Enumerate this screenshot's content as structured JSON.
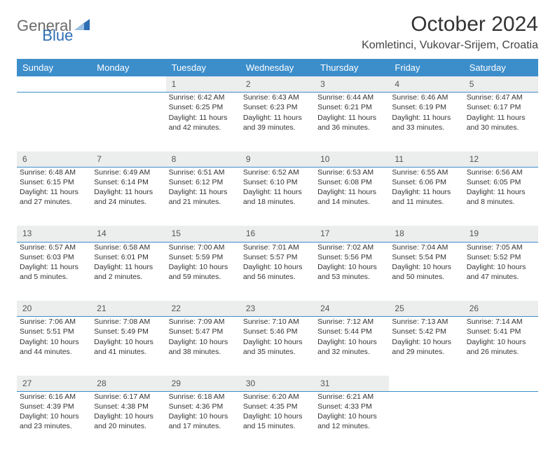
{
  "brand": {
    "part1": "General",
    "part2": "Blue"
  },
  "title": "October 2024",
  "location": "Komletinci, Vukovar-Srijem, Croatia",
  "header_bg": "#3c8ecb",
  "header_fg": "#ffffff",
  "daynum_bg": "#eceded",
  "daynum_border": "#3c8ecb",
  "body_bg": "#ffffff",
  "text_color": "#333333",
  "days": [
    "Sunday",
    "Monday",
    "Tuesday",
    "Wednesday",
    "Thursday",
    "Friday",
    "Saturday"
  ],
  "weeks": [
    {
      "nums": [
        "",
        "",
        "1",
        "2",
        "3",
        "4",
        "5"
      ],
      "cells": [
        {},
        {},
        {
          "sunrise": "Sunrise: 6:42 AM",
          "sunset": "Sunset: 6:25 PM",
          "daylight": "Daylight: 11 hours and 42 minutes."
        },
        {
          "sunrise": "Sunrise: 6:43 AM",
          "sunset": "Sunset: 6:23 PM",
          "daylight": "Daylight: 11 hours and 39 minutes."
        },
        {
          "sunrise": "Sunrise: 6:44 AM",
          "sunset": "Sunset: 6:21 PM",
          "daylight": "Daylight: 11 hours and 36 minutes."
        },
        {
          "sunrise": "Sunrise: 6:46 AM",
          "sunset": "Sunset: 6:19 PM",
          "daylight": "Daylight: 11 hours and 33 minutes."
        },
        {
          "sunrise": "Sunrise: 6:47 AM",
          "sunset": "Sunset: 6:17 PM",
          "daylight": "Daylight: 11 hours and 30 minutes."
        }
      ]
    },
    {
      "nums": [
        "6",
        "7",
        "8",
        "9",
        "10",
        "11",
        "12"
      ],
      "cells": [
        {
          "sunrise": "Sunrise: 6:48 AM",
          "sunset": "Sunset: 6:15 PM",
          "daylight": "Daylight: 11 hours and 27 minutes."
        },
        {
          "sunrise": "Sunrise: 6:49 AM",
          "sunset": "Sunset: 6:14 PM",
          "daylight": "Daylight: 11 hours and 24 minutes."
        },
        {
          "sunrise": "Sunrise: 6:51 AM",
          "sunset": "Sunset: 6:12 PM",
          "daylight": "Daylight: 11 hours and 21 minutes."
        },
        {
          "sunrise": "Sunrise: 6:52 AM",
          "sunset": "Sunset: 6:10 PM",
          "daylight": "Daylight: 11 hours and 18 minutes."
        },
        {
          "sunrise": "Sunrise: 6:53 AM",
          "sunset": "Sunset: 6:08 PM",
          "daylight": "Daylight: 11 hours and 14 minutes."
        },
        {
          "sunrise": "Sunrise: 6:55 AM",
          "sunset": "Sunset: 6:06 PM",
          "daylight": "Daylight: 11 hours and 11 minutes."
        },
        {
          "sunrise": "Sunrise: 6:56 AM",
          "sunset": "Sunset: 6:05 PM",
          "daylight": "Daylight: 11 hours and 8 minutes."
        }
      ]
    },
    {
      "nums": [
        "13",
        "14",
        "15",
        "16",
        "17",
        "18",
        "19"
      ],
      "cells": [
        {
          "sunrise": "Sunrise: 6:57 AM",
          "sunset": "Sunset: 6:03 PM",
          "daylight": "Daylight: 11 hours and 5 minutes."
        },
        {
          "sunrise": "Sunrise: 6:58 AM",
          "sunset": "Sunset: 6:01 PM",
          "daylight": "Daylight: 11 hours and 2 minutes."
        },
        {
          "sunrise": "Sunrise: 7:00 AM",
          "sunset": "Sunset: 5:59 PM",
          "daylight": "Daylight: 10 hours and 59 minutes."
        },
        {
          "sunrise": "Sunrise: 7:01 AM",
          "sunset": "Sunset: 5:57 PM",
          "daylight": "Daylight: 10 hours and 56 minutes."
        },
        {
          "sunrise": "Sunrise: 7:02 AM",
          "sunset": "Sunset: 5:56 PM",
          "daylight": "Daylight: 10 hours and 53 minutes."
        },
        {
          "sunrise": "Sunrise: 7:04 AM",
          "sunset": "Sunset: 5:54 PM",
          "daylight": "Daylight: 10 hours and 50 minutes."
        },
        {
          "sunrise": "Sunrise: 7:05 AM",
          "sunset": "Sunset: 5:52 PM",
          "daylight": "Daylight: 10 hours and 47 minutes."
        }
      ]
    },
    {
      "nums": [
        "20",
        "21",
        "22",
        "23",
        "24",
        "25",
        "26"
      ],
      "cells": [
        {
          "sunrise": "Sunrise: 7:06 AM",
          "sunset": "Sunset: 5:51 PM",
          "daylight": "Daylight: 10 hours and 44 minutes."
        },
        {
          "sunrise": "Sunrise: 7:08 AM",
          "sunset": "Sunset: 5:49 PM",
          "daylight": "Daylight: 10 hours and 41 minutes."
        },
        {
          "sunrise": "Sunrise: 7:09 AM",
          "sunset": "Sunset: 5:47 PM",
          "daylight": "Daylight: 10 hours and 38 minutes."
        },
        {
          "sunrise": "Sunrise: 7:10 AM",
          "sunset": "Sunset: 5:46 PM",
          "daylight": "Daylight: 10 hours and 35 minutes."
        },
        {
          "sunrise": "Sunrise: 7:12 AM",
          "sunset": "Sunset: 5:44 PM",
          "daylight": "Daylight: 10 hours and 32 minutes."
        },
        {
          "sunrise": "Sunrise: 7:13 AM",
          "sunset": "Sunset: 5:42 PM",
          "daylight": "Daylight: 10 hours and 29 minutes."
        },
        {
          "sunrise": "Sunrise: 7:14 AM",
          "sunset": "Sunset: 5:41 PM",
          "daylight": "Daylight: 10 hours and 26 minutes."
        }
      ]
    },
    {
      "nums": [
        "27",
        "28",
        "29",
        "30",
        "31",
        "",
        ""
      ],
      "cells": [
        {
          "sunrise": "Sunrise: 6:16 AM",
          "sunset": "Sunset: 4:39 PM",
          "daylight": "Daylight: 10 hours and 23 minutes."
        },
        {
          "sunrise": "Sunrise: 6:17 AM",
          "sunset": "Sunset: 4:38 PM",
          "daylight": "Daylight: 10 hours and 20 minutes."
        },
        {
          "sunrise": "Sunrise: 6:18 AM",
          "sunset": "Sunset: 4:36 PM",
          "daylight": "Daylight: 10 hours and 17 minutes."
        },
        {
          "sunrise": "Sunrise: 6:20 AM",
          "sunset": "Sunset: 4:35 PM",
          "daylight": "Daylight: 10 hours and 15 minutes."
        },
        {
          "sunrise": "Sunrise: 6:21 AM",
          "sunset": "Sunset: 4:33 PM",
          "daylight": "Daylight: 10 hours and 12 minutes."
        },
        {},
        {}
      ]
    }
  ]
}
